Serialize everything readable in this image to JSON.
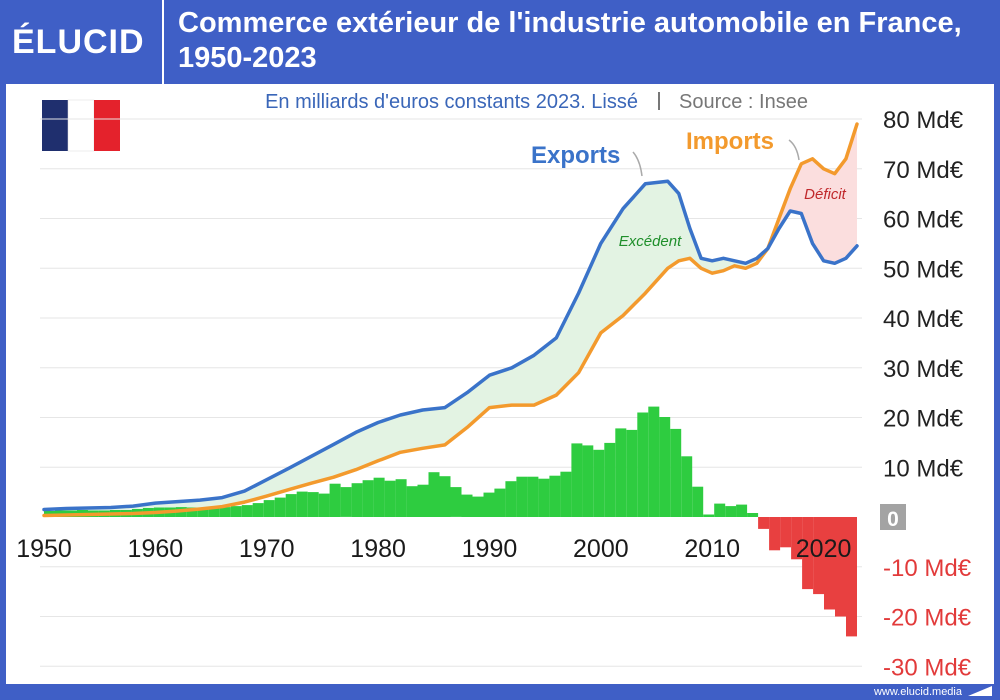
{
  "brand": {
    "logo_text": "ÉLUCID",
    "footer_url": "www.elucid.media"
  },
  "chart_data": {
    "type": "bar+line",
    "title": "Commerce extérieur de l'industrie automobile en France, 1950-2023",
    "subtitle": "En milliards d'euros constants 2023. Lissé",
    "source": "Source : Insee",
    "x_ticks": [
      "1950",
      "1960",
      "1970",
      "1980",
      "1990",
      "2000",
      "2010",
      "2020"
    ],
    "y_ticks": [
      "80 Md€",
      "70 Md€",
      "60 Md€",
      "50 Md€",
      "40 Md€",
      "30 Md€",
      "20 Md€",
      "10 Md€",
      "0",
      "-10 Md€",
      "-20 Md€",
      "-30 Md€"
    ],
    "ylim": [
      -30,
      80
    ],
    "xlim": [
      1950,
      2023
    ],
    "annotations": {
      "surplus": "Excédent",
      "deficit": "Déficit"
    },
    "colors": {
      "exports": "#3a73c9",
      "imports": "#f39a2d",
      "surplus_bar": "#2ecc40",
      "deficit_bar": "#e84040",
      "surplus_fill": "#e3f3e3",
      "deficit_fill": "#fbdede"
    },
    "exports": {
      "name": "Exports",
      "x": [
        1950,
        1952,
        1954,
        1956,
        1958,
        1960,
        1962,
        1964,
        1966,
        1968,
        1970,
        1972,
        1974,
        1976,
        1978,
        1980,
        1982,
        1984,
        1986,
        1988,
        1990,
        1992,
        1994,
        1996,
        1998,
        2000,
        2002,
        2004,
        2006,
        2007,
        2008,
        2009,
        2010,
        2011,
        2012,
        2013,
        2014,
        2015,
        2016,
        2017,
        2018,
        2019,
        2020,
        2021,
        2022,
        2023
      ],
      "values": [
        1.5,
        1.7,
        1.8,
        1.9,
        2.2,
        2.8,
        3.1,
        3.4,
        3.9,
        5.2,
        7.5,
        9.8,
        12.2,
        14.6,
        17,
        19,
        20.5,
        21.5,
        22,
        25,
        28.5,
        30,
        32.5,
        36,
        45,
        55,
        62,
        67,
        67.5,
        65,
        58,
        52,
        51.5,
        52,
        51.5,
        51,
        52,
        54,
        58,
        61.5,
        61,
        55,
        51.5,
        51,
        52,
        54.5
      ]
    },
    "imports": {
      "name": "Imports",
      "x": [
        1950,
        1952,
        1954,
        1956,
        1958,
        1960,
        1962,
        1964,
        1966,
        1968,
        1970,
        1972,
        1974,
        1976,
        1978,
        1980,
        1982,
        1984,
        1986,
        1988,
        1990,
        1992,
        1994,
        1996,
        1998,
        2000,
        2002,
        2004,
        2006,
        2007,
        2008,
        2009,
        2010,
        2011,
        2012,
        2013,
        2014,
        2015,
        2016,
        2017,
        2018,
        2019,
        2020,
        2021,
        2022,
        2023
      ],
      "values": [
        0.3,
        0.4,
        0.5,
        0.6,
        0.7,
        0.9,
        1.2,
        1.6,
        2.1,
        3,
        4.2,
        5.5,
        6.8,
        8,
        9.5,
        11.3,
        13,
        13.8,
        14.5,
        18,
        22,
        22.5,
        22.5,
        24.5,
        29,
        37,
        40.5,
        45,
        50,
        51.5,
        52,
        50,
        49,
        49.5,
        50.5,
        50,
        51,
        54,
        60,
        66,
        71,
        72,
        70,
        69,
        72,
        79
      ]
    },
    "balance": {
      "name": "",
      "x": [
        1950,
        1951,
        1952,
        1953,
        1954,
        1955,
        1956,
        1957,
        1958,
        1959,
        1960,
        1961,
        1962,
        1963,
        1964,
        1965,
        1966,
        1967,
        1968,
        1969,
        1970,
        1971,
        1972,
        1973,
        1974,
        1975,
        1976,
        1977,
        1978,
        1979,
        1980,
        1981,
        1982,
        1983,
        1984,
        1985,
        1986,
        1987,
        1988,
        1989,
        1990,
        1991,
        1992,
        1993,
        1994,
        1995,
        1996,
        1997,
        1998,
        1999,
        2000,
        2001,
        2002,
        2003,
        2004,
        2005,
        2006,
        2007,
        2008,
        2009,
        2010,
        2011,
        2012,
        2013,
        2014,
        2015,
        2016,
        2017,
        2018,
        2019,
        2020,
        2021,
        2022,
        2023
      ],
      "values": [
        1.2,
        1.3,
        1.3,
        1.4,
        1.3,
        1.3,
        1.4,
        1.4,
        1.6,
        1.8,
        1.9,
        1.9,
        2,
        1.9,
        1.9,
        1.9,
        2,
        2.2,
        2.4,
        2.8,
        3.4,
        3.9,
        4.6,
        5.1,
        5,
        4.7,
        6.7,
        6,
        6.8,
        7.4,
        7.9,
        7.3,
        7.6,
        6.2,
        6.5,
        9,
        8.2,
        6,
        4.5,
        4.1,
        4.9,
        5.7,
        7.2,
        8.1,
        8.1,
        7.7,
        8.3,
        9.1,
        14.8,
        14.4,
        13.5,
        14.9,
        17.8,
        17.5,
        21,
        22.2,
        20.1,
        17.7,
        12.2,
        6.1,
        0.5,
        2.7,
        2.2,
        2.5,
        0.8,
        -2.4,
        -6.7,
        -6.1,
        -8.5,
        -14.5,
        -15.5,
        -18.6,
        -20,
        -24
      ]
    }
  }
}
